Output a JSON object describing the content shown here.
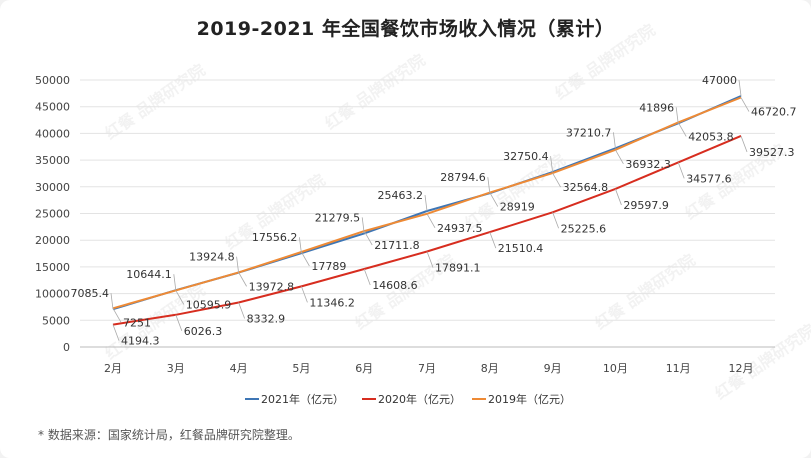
{
  "chart_data": {
    "type": "line",
    "title": "2019-2021 年全国餐饮市场收入情况（累计）",
    "categories": [
      "2月",
      "3月",
      "4月",
      "5月",
      "6月",
      "7月",
      "8月",
      "9月",
      "10月",
      "11月",
      "12月"
    ],
    "ylim": [
      0,
      50000
    ],
    "yticks": [
      0,
      5000,
      10000,
      15000,
      20000,
      25000,
      30000,
      35000,
      40000,
      45000,
      50000
    ],
    "grid": true,
    "legend_position": "bottom",
    "series": [
      {
        "name": "2021年（亿元）",
        "color": "#3e76b5",
        "values": [
          7085.4,
          10644.1,
          13924.8,
          17556.2,
          21279.5,
          25463.2,
          28794.6,
          32750.4,
          37210.7,
          41896,
          47000
        ]
      },
      {
        "name": "2020年（亿元）",
        "color": "#d72d1f",
        "values": [
          4194.3,
          6026.3,
          8332.9,
          11346.2,
          14608.6,
          17891.1,
          21510.4,
          25225.6,
          29597.9,
          34577.6,
          39527.3
        ]
      },
      {
        "name": "2019年（亿元）",
        "color": "#ee8a35",
        "values": [
          7251,
          10595.9,
          13972.8,
          17789,
          21711.8,
          24937.5,
          28919,
          32564.8,
          36932.3,
          42053.8,
          46720.7
        ]
      }
    ]
  },
  "source_note": "* 数据来源：国家统计局，红餐品牌研究院整理。",
  "watermark_text": "红餐 品牌研究院"
}
